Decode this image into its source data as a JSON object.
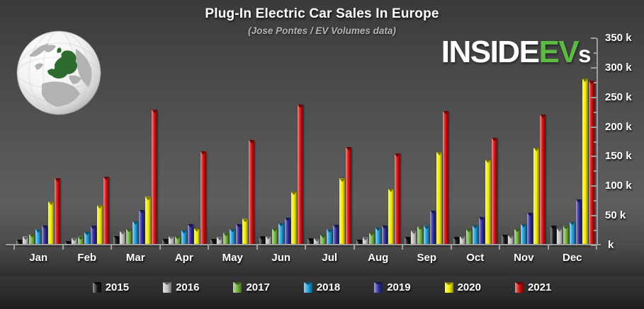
{
  "header": {
    "title": "Plug-In Electric Car Sales In Europe",
    "subtitle": "(Jose Pontes / EV Volumes data)"
  },
  "logo": {
    "part1": "INSIDE",
    "part2": "EV",
    "part3": "s",
    "accent_color": "#5cbb45"
  },
  "chart_data": {
    "type": "bar",
    "title": "Plug-In Electric Car Sales In Europe",
    "subtitle": "(Jose Pontes / EV Volumes data)",
    "units": "thousands of cars (k)",
    "categories": [
      "Jan",
      "Feb",
      "Mar",
      "Apr",
      "May",
      "Jun",
      "Jul",
      "Aug",
      "Sep",
      "Oct",
      "Nov",
      "Dec"
    ],
    "series": [
      {
        "name": "2015",
        "color": "#161616",
        "values": [
          10,
          7,
          16,
          11,
          11,
          15,
          12,
          10,
          14,
          14,
          18,
          33
        ]
      },
      {
        "name": "2016",
        "color": "#bfbfbf",
        "values": [
          15,
          13,
          24,
          16,
          14,
          16,
          12,
          14,
          25,
          16,
          17,
          29
        ]
      },
      {
        "name": "2017",
        "color": "#74b043",
        "values": [
          19,
          15,
          28,
          16,
          21,
          29,
          18,
          22,
          32,
          28,
          28,
          33
        ]
      },
      {
        "name": "2018",
        "color": "#1f9dd9",
        "values": [
          27,
          23,
          41,
          26,
          28,
          38,
          27,
          30,
          33,
          34,
          36,
          40
        ]
      },
      {
        "name": "2019",
        "color": "#2e2c9a",
        "values": [
          34,
          33,
          60,
          36,
          36,
          47,
          35,
          34,
          59,
          48,
          55,
          78
        ]
      },
      {
        "name": "2020",
        "color": "#f2ea00",
        "values": [
          74,
          68,
          82,
          29,
          45,
          91,
          113,
          96,
          158,
          145,
          165,
          282
        ]
      },
      {
        "name": "2021",
        "color": "#cc0e0e",
        "values": [
          113,
          116,
          229,
          159,
          178,
          238,
          166,
          155,
          227,
          182,
          221,
          278
        ]
      }
    ],
    "y_axis": {
      "ymax_k": 350,
      "major_step_k": 50,
      "minor_step_k": 25,
      "tick_labels": [
        "350 k",
        "300 k",
        "250 k",
        "200 k",
        "150 k",
        "100 k",
        "50 k",
        "k"
      ],
      "side": "right"
    },
    "legend_position": "bottom",
    "grid": false
  }
}
